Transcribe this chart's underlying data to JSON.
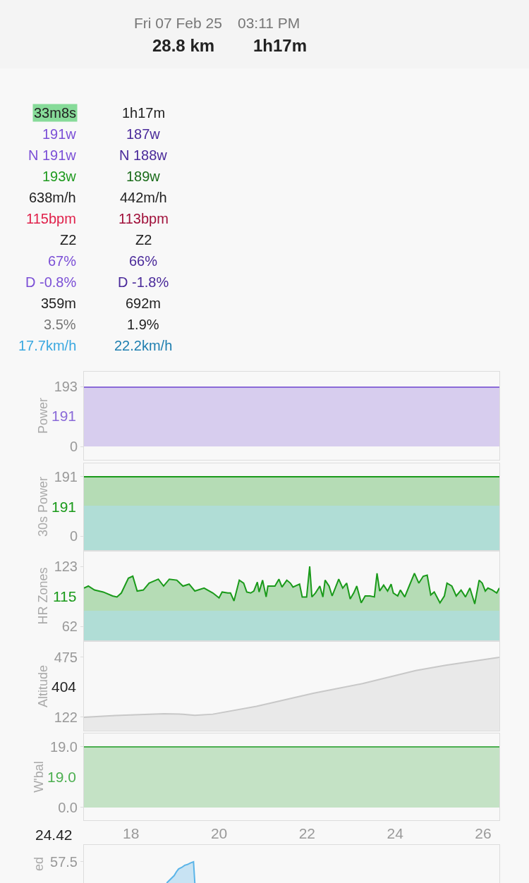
{
  "chart_data": [
    {
      "type": "other",
      "annotations": [
        "Fri 07 Feb 25",
        "03:11 PM",
        "28.8 km",
        "1h17m",
        "33m8s",
        "1h17m",
        "191w",
        "187w",
        "N 191w",
        "N 188w",
        "193w",
        "189w",
        "638m/h",
        "442m/h",
        "115bpm",
        "113bpm",
        "Z2",
        "Z2",
        "67%",
        "66%",
        "D -0.8%",
        "D -1.8%",
        "359m",
        "692m",
        "3.5%",
        "1.9%",
        "17.7km/h",
        "22.2km/h"
      ],
      "colors": [
        "#777777",
        "#777777",
        "#222222",
        "#222222",
        "#222222",
        "#222222",
        "#7b4fd6",
        "#4a2a9a",
        "#7b4fd6",
        "#4a2a9a",
        "#1f9a1f",
        "#1a6b1a",
        "#222222",
        "#222222",
        "#e0204a",
        "#a0103a",
        "#222222",
        "#222222",
        "#7b4fd6",
        "#4a2a9a",
        "#7b4fd6",
        "#4a2a9a",
        "#222222",
        "#222222",
        "#777777",
        "#222222",
        "#3aa8e0",
        "#1f7fb0"
      ]
    },
    {
      "type": "area",
      "ylabel": "Power",
      "xlim": [
        16.93,
        26.37
      ],
      "xticks": [
        18,
        20,
        22,
        24,
        26
      ],
      "ylim": [
        -43,
        241
      ],
      "yticks": [
        0,
        193
      ],
      "tick_labels": "y",
      "annotations": [
        "191"
      ],
      "series": [
        {
          "color": "#8a6ad8",
          "x": [
            16.93,
            26.37
          ],
          "values": [
            191,
            191
          ]
        }
      ]
    },
    {
      "type": "area",
      "ylabel": "30s Power",
      "xlim": [
        16.93,
        26.37
      ],
      "xticks": [
        18,
        20,
        22,
        24,
        26
      ],
      "ylim": [
        -45,
        234
      ],
      "yticks": [
        0,
        191
      ],
      "tick_labels": "y",
      "annotations": [
        "191"
      ],
      "bands": [
        {
          "axis": "y",
          "from": -45,
          "to": 98,
          "color": "#b0ddd6"
        }
      ],
      "series": [
        {
          "color": "#1a9a1a",
          "x": [
            16.93,
            26.37
          ],
          "values": [
            191,
            191
          ]
        }
      ]
    },
    {
      "type": "area",
      "ylabel": "HR Zones",
      "xlim": [
        16.93,
        26.37
      ],
      "xticks": [
        18,
        20,
        22,
        24,
        26
      ],
      "ylim": [
        48,
        138
      ],
      "yticks": [
        62,
        123
      ],
      "tick_labels": "y",
      "annotations": [
        "115"
      ],
      "bands": [
        {
          "axis": "y",
          "from": 48,
          "to": 78,
          "color": "#b0ddd6"
        }
      ],
      "series": [
        {
          "color": "#1a9a1a",
          "x": [
            16.93,
            17.03,
            17.17,
            17.37,
            17.58,
            17.68,
            17.78,
            17.94,
            18.04,
            18.14,
            18.28,
            18.41,
            18.62,
            18.74,
            18.87,
            19.04,
            19.18,
            19.32,
            19.45,
            19.66,
            19.86,
            20.0,
            20.07,
            20.2,
            20.26,
            20.34,
            20.46,
            20.56,
            20.63,
            20.72,
            20.79,
            20.87,
            20.91,
            20.99,
            21.07,
            21.11,
            21.21,
            21.27,
            21.36,
            21.43,
            21.54,
            21.62,
            21.68,
            21.83,
            21.89,
            21.99,
            22.06,
            22.11,
            22.19,
            22.29,
            22.36,
            22.41,
            22.5,
            22.57,
            22.64,
            22.72,
            22.81,
            22.9,
            22.98,
            23.06,
            23.13,
            23.23,
            23.32,
            23.43,
            23.53,
            23.59,
            23.65,
            23.74,
            23.83,
            23.91,
            23.96,
            24.06,
            24.12,
            24.22,
            24.32,
            24.44,
            24.54,
            24.64,
            24.73,
            24.81,
            24.89,
            25.02,
            25.12,
            25.18,
            25.29,
            25.39,
            25.5,
            25.6,
            25.7,
            25.81,
            25.91,
            25.98,
            26.05,
            26.11,
            26.21,
            26.31,
            26.37
          ],
          "values": [
            101,
            103,
            99,
            97,
            93,
            92,
            96,
            111,
            113,
            98,
            99,
            106,
            110,
            103,
            110,
            109,
            103,
            105,
            98,
            101,
            96,
            91,
            97,
            96,
            96,
            88,
            109,
            106,
            97,
            96,
            98,
            107,
            97,
            109,
            92,
            103,
            103,
            103,
            110,
            102,
            109,
            106,
            102,
            105,
            92,
            92,
            123,
            92,
            96,
            103,
            92,
            109,
            103,
            93,
            101,
            110,
            101,
            106,
            90,
            96,
            103,
            86,
            93,
            93,
            92,
            116,
            98,
            104,
            98,
            105,
            96,
            93,
            99,
            92,
            103,
            116,
            106,
            113,
            114,
            94,
            97,
            86,
            93,
            106,
            103,
            93,
            99,
            92,
            101,
            85,
            109,
            106,
            98,
            101,
            99,
            96,
            101
          ]
        }
      ]
    },
    {
      "type": "area",
      "ylabel": "Altitude",
      "xlim": [
        16.93,
        26.37
      ],
      "xticks": [
        18,
        20,
        22,
        24,
        26
      ],
      "ylim": [
        43,
        566
      ],
      "yticks": [
        122,
        475
      ],
      "tick_labels": "y",
      "annotations": [
        "404"
      ],
      "series": [
        {
          "color": "#c8c8c8",
          "x": [
            16.93,
            17.65,
            18.75,
            19.18,
            19.45,
            19.86,
            20.85,
            22.14,
            23.26,
            24.47,
            25.15,
            26.37
          ],
          "values": [
            122,
            132,
            143,
            140,
            133,
            140,
            186,
            263,
            320,
            397,
            428,
            475
          ]
        }
      ]
    },
    {
      "type": "area",
      "ylabel": "W'bal",
      "xlim": [
        16.93,
        26.37
      ],
      "ylim": [
        -4.0,
        23.2
      ],
      "yticks": [
        {
          "value": 0,
          "label": "0.0"
        },
        {
          "value": 19.0,
          "label": "19.0"
        }
      ],
      "xticks": [
        18,
        20,
        22,
        24,
        26
      ],
      "annotations": [
        "19.0",
        "24.42"
      ],
      "series": [
        {
          "color": "#4caf50",
          "x": [
            16.93,
            26.37
          ],
          "values": [
            19.0,
            19.0
          ]
        }
      ]
    },
    {
      "type": "area",
      "ylabel": "ed",
      "xlim": [
        16.93,
        26.37
      ],
      "xticks": [
        18,
        20,
        22,
        24,
        26
      ],
      "ylim": [
        0,
        103
      ],
      "yticks": [
        57.5
      ],
      "tick_labels": "y",
      "series": [
        {
          "color": "#5ab4e8",
          "x": [
            18.81,
            18.98,
            19.03,
            19.08,
            19.15,
            19.22,
            19.28,
            19.35,
            19.42,
            19.45
          ],
          "values": [
            0,
            20,
            30,
            38,
            42,
            48,
            50,
            54,
            57.5,
            0
          ]
        }
      ]
    }
  ]
}
